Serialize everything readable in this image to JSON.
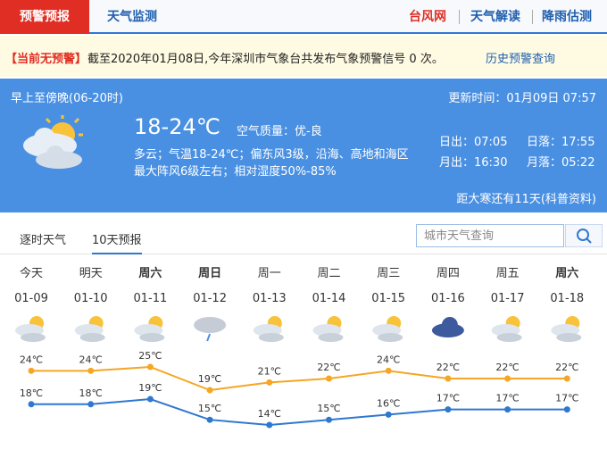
{
  "nav": {
    "tabs": [
      "预警预报",
      "天气监测"
    ],
    "links": [
      "台风网",
      "天气解读",
      "降雨估测"
    ]
  },
  "warning": {
    "status": "【当前无预警】",
    "text": "截至2020年01月08日,今年深圳市气象台共发布气象预警信号 0 次。",
    "link": "历史预警查询"
  },
  "today": {
    "period": "早上至傍晚(06-20时)",
    "updated": "更新时间：01月09日 07:57",
    "temp": "18-24℃",
    "air": "空气质量：优-良",
    "desc": [
      "多云；气温18-24℃；偏东风3级，沿海、高地和海区",
      "最大阵风6级左右；相对湿度50%-85%"
    ],
    "sun_moon": [
      "日出：07:05",
      "日落：17:55",
      "月出：16:30",
      "月落：05:22"
    ],
    "solar_term": "距大寒还有11天(科普资料)"
  },
  "tabs": [
    "逐时天气",
    "10天预报"
  ],
  "search_placeholder": "城市天气查询",
  "forecast": {
    "days": [
      "今天",
      "明天",
      "周六",
      "周日",
      "周一",
      "周二",
      "周三",
      "周四",
      "周五",
      "周六"
    ],
    "dates": [
      "01-09",
      "01-10",
      "01-11",
      "01-12",
      "01-13",
      "01-14",
      "01-15",
      "01-16",
      "01-17",
      "01-18"
    ],
    "chart": {
      "type": "line",
      "series": [
        {
          "color": "#f5a623",
          "values": [
            24,
            24,
            25,
            19,
            21,
            22,
            24,
            22,
            22,
            22
          ],
          "value_labels": [
            "24℃",
            "24℃",
            "25℃",
            "19℃",
            "21℃",
            "22℃",
            "24℃",
            "22℃",
            "22℃",
            "22℃"
          ]
        },
        {
          "color": "#2f78d0",
          "values": [
            18,
            18,
            19,
            15,
            14,
            15,
            16,
            17,
            17,
            17
          ],
          "value_labels": [
            "18℃",
            "18℃",
            "19℃",
            "15℃",
            "14℃",
            "15℃",
            "16℃",
            "17℃",
            "17℃",
            "17℃"
          ]
        }
      ]
    }
  }
}
